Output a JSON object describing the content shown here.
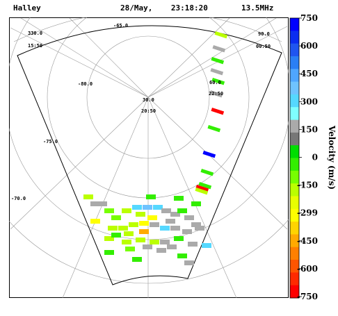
{
  "header": {
    "station": "Halley",
    "date_time": "28/May,    23:18:20",
    "frequency": "13.5MHz"
  },
  "map_labels": {
    "lat_minus65": "-65.0",
    "lat_minus70": "-70.0",
    "lat_minus75": "-75.0",
    "lat_minus80": "-80.0",
    "mlon_330": "330.0",
    "mlon_30": "30.0",
    "mlon_60": "60.0",
    "mlon_90": "90.0",
    "mlt_1550": "15:50",
    "mlt_2050": "20:50",
    "mlt_2250": "22:50",
    "mlt_0050": "00:50"
  },
  "colorbar": {
    "title": "Velocity (m/s)",
    "tick_labels": [
      "750",
      "600",
      "450",
      "300",
      "150",
      "0",
      "-150",
      "-299",
      "-450",
      "-600",
      "-750"
    ],
    "range": [
      -750,
      750
    ],
    "colors_top_to_bottom": [
      "#0000ff",
      "#0a2df0",
      "#1f55f0",
      "#2a7ff5",
      "#4fa6ff",
      "#6fc3ff",
      "#55d8ff",
      "#7fffff",
      "#aaaaaa",
      "#777777",
      "#00dd00",
      "#33ee00",
      "#77ff00",
      "#bbff00",
      "#e8ff00",
      "#ffff00",
      "#ffd400",
      "#ffaa00",
      "#ff8000",
      "#ff5500",
      "#ff2a00",
      "#ff0000"
    ]
  },
  "chart_data": {
    "type": "heatmap",
    "title": "Halley 28/May, 23:18:20 13.5MHz",
    "value_label": "Velocity (m/s)",
    "value_range": [
      -750,
      750
    ],
    "beams": [
      {
        "name": "beam-column",
        "gates": [
          {
            "velocity": -180
          },
          {
            "velocity": 150
          },
          {
            "velocity": 0
          },
          {
            "velocity": 150
          },
          {
            "velocity": 0
          },
          {
            "velocity": 150
          },
          {
            "velocity": -740
          },
          {
            "velocity": 0
          },
          {
            "velocity": 700
          },
          {
            "velocity": 0
          },
          {
            "velocity": 0
          },
          {
            "velocity": -720
          },
          {
            "velocity": -150
          }
        ]
      }
    ],
    "ground_scatter_color": "#777777"
  }
}
